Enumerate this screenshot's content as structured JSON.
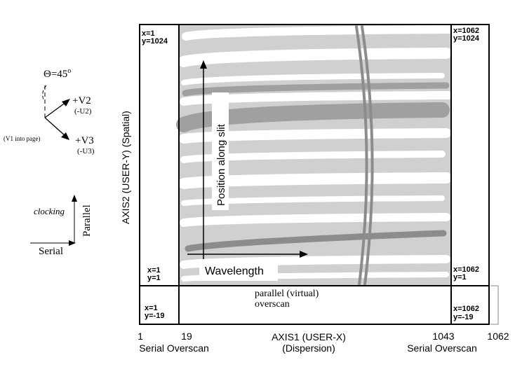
{
  "orientation": {
    "angle_label": "Θ=45",
    "angle_unit": "o",
    "v2": "+V2",
    "u2": "(-U2)",
    "v1_note": "(V1 into page)",
    "v3": "+V3",
    "u3": "(-U3)"
  },
  "clocking": {
    "label": "clocking",
    "parallel": "Parallel",
    "serial": "Serial"
  },
  "detector": {
    "corners": [
      {
        "x": "x=1",
        "y": "y=1024"
      },
      {
        "x": "x=1062",
        "y": "y=1024"
      },
      {
        "x": "x=1",
        "y": "y=1"
      },
      {
        "x": "x=1062",
        "y": "y=1"
      },
      {
        "x": "x=1",
        "y": "y=-19"
      },
      {
        "x": "x=1062",
        "y": "y=-19"
      }
    ],
    "slit_label": "Position along slit",
    "wavelength_label": "Wavelength",
    "overscan_label": [
      "parallel (virtual)",
      "overscan"
    ]
  },
  "axes": {
    "y_label": "AXIS2 (USER-Y) (Spatial)",
    "x_label": "AXIS1 (USER-X)",
    "x_sub": "(Dispersion)",
    "x_ticks": [
      "1",
      "19",
      "1043",
      "1062"
    ],
    "serial_left": "Serial Overscan",
    "serial_right": "Serial Overscan"
  }
}
